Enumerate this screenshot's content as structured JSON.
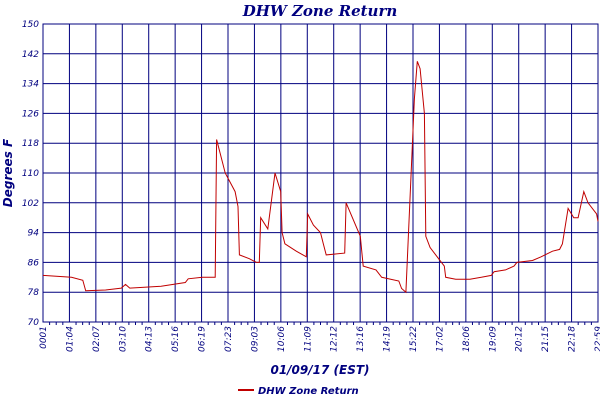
{
  "chart_data": {
    "type": "line",
    "title": "DHW Zone Return",
    "xlabel": "01/09/17 (EST)",
    "ylabel": "Degrees F",
    "ylim": [
      70,
      150
    ],
    "yticks": [
      "70",
      "78",
      "86",
      "94",
      "102",
      "110",
      "118",
      "126",
      "134",
      "142",
      "150"
    ],
    "xticks": [
      "0001",
      "01:04",
      "02:07",
      "03:10",
      "04:13",
      "05:16",
      "06:19",
      "07:23",
      "09:03",
      "10:06",
      "11:09",
      "12:12",
      "13:16",
      "14:19",
      "15:22",
      "17:02",
      "18:06",
      "19:09",
      "20:12",
      "21:15",
      "22:18",
      "22:59"
    ],
    "grid": true,
    "legend_position": "bottom-center",
    "series": [
      {
        "name": "DHW Zone Return",
        "color": "#c00000",
        "points": [
          [
            0,
            82.5
          ],
          [
            20,
            82.0
          ],
          [
            28,
            81.2
          ],
          [
            30,
            78.4
          ],
          [
            44,
            78.6
          ],
          [
            55,
            79.1
          ],
          [
            58,
            80.1
          ],
          [
            61,
            79.1
          ],
          [
            83,
            79.6
          ],
          [
            100,
            80.6
          ],
          [
            102,
            81.6
          ],
          [
            112,
            82.0
          ],
          [
            121,
            82.0
          ],
          [
            122,
            119.0
          ],
          [
            124,
            116.0
          ],
          [
            128,
            110.0
          ],
          [
            135,
            105.0
          ],
          [
            137,
            101.0
          ],
          [
            138,
            88.0
          ],
          [
            145,
            87.0
          ],
          [
            150,
            86.0
          ],
          [
            152,
            86.0
          ],
          [
            153,
            98.0
          ],
          [
            158,
            95.0
          ],
          [
            163,
            110.0
          ],
          [
            167,
            105.0
          ],
          [
            168,
            94.0
          ],
          [
            170,
            91.0
          ],
          [
            178,
            89.0
          ],
          [
            185,
            87.5
          ],
          [
            186,
            99.0
          ],
          [
            190,
            96.0
          ],
          [
            195,
            94.0
          ],
          [
            197,
            91.0
          ],
          [
            199,
            88.0
          ],
          [
            212,
            88.5
          ],
          [
            213,
            102.0
          ],
          [
            223,
            93.0
          ],
          [
            225,
            85.0
          ],
          [
            234,
            84.0
          ],
          [
            238,
            82.0
          ],
          [
            250,
            81.0
          ],
          [
            252,
            79.0
          ],
          [
            255,
            78.0
          ],
          [
            261,
            130.0
          ],
          [
            263,
            140.0
          ],
          [
            265,
            138.0
          ],
          [
            268,
            126.0
          ],
          [
            269,
            93.0
          ],
          [
            272,
            90.0
          ],
          [
            278,
            87.0
          ],
          [
            282,
            85.0
          ],
          [
            283,
            82.0
          ],
          [
            290,
            81.5
          ],
          [
            300,
            81.5
          ],
          [
            308,
            82.0
          ],
          [
            315,
            82.5
          ],
          [
            317,
            83.5
          ],
          [
            325,
            84.0
          ],
          [
            331,
            85.0
          ],
          [
            333,
            86.0
          ],
          [
            344,
            86.5
          ],
          [
            350,
            87.5
          ],
          [
            358,
            89.0
          ],
          [
            363,
            89.5
          ],
          [
            365,
            91.0
          ],
          [
            369,
            100.5
          ],
          [
            373,
            98.0
          ],
          [
            376,
            98.0
          ],
          [
            380,
            105.0
          ],
          [
            383,
            102.0
          ],
          [
            389,
            99.0
          ],
          [
            390,
            97.0
          ]
        ]
      }
    ]
  }
}
